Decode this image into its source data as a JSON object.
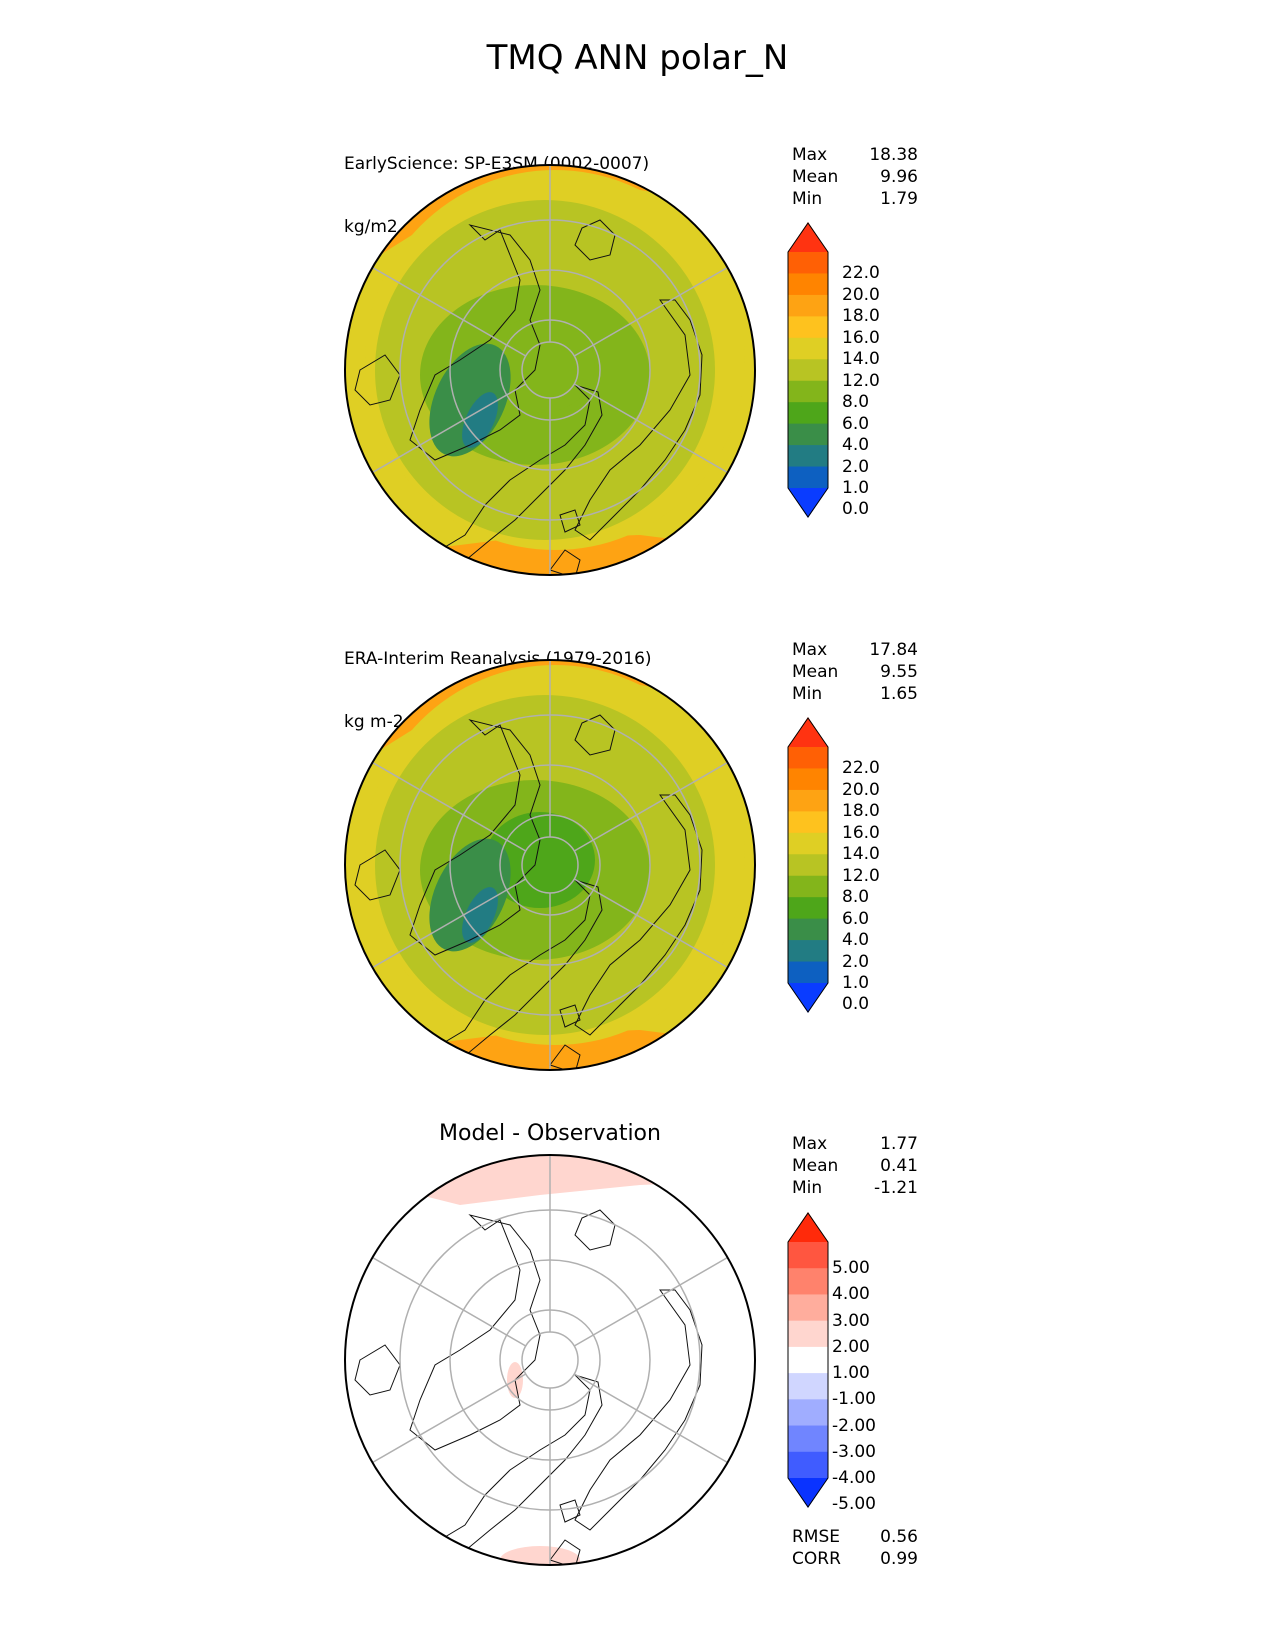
{
  "title": "TMQ ANN polar_N",
  "panels": [
    {
      "title_line1": "EarlyScience: SP-E3SM (0002-0007)",
      "title_line2": "kg/m2",
      "stats": [
        {
          "label": "Max",
          "value": "18.38"
        },
        {
          "label": "Mean",
          "value": "9.96"
        },
        {
          "label": "Min",
          "value": "1.79"
        }
      ],
      "colorbar_labels": [
        "22.0",
        "20.0",
        "18.0",
        "16.0",
        "14.0",
        "12.0",
        "8.0",
        "6.0",
        "4.0",
        "2.0",
        "1.0",
        "0.0"
      ],
      "colorbar_colors": [
        "#ff3311",
        "#ff6005",
        "#ff8400",
        "#fea313",
        "#fec21e",
        "#dfcf24",
        "#b8c423",
        "#83b51b",
        "#4ea61a",
        "#3a8e48",
        "#227c83",
        "#0d60c1",
        "#0a3cff"
      ]
    },
    {
      "title_line1": "ERA-Interim Reanalysis (1979-2016)",
      "title_line2": "kg m-2",
      "stats": [
        {
          "label": "Max",
          "value": "17.84"
        },
        {
          "label": "Mean",
          "value": "9.55"
        },
        {
          "label": "Min",
          "value": "1.65"
        }
      ],
      "colorbar_labels": [
        "22.0",
        "20.0",
        "18.0",
        "16.0",
        "14.0",
        "12.0",
        "8.0",
        "6.0",
        "4.0",
        "2.0",
        "1.0",
        "0.0"
      ],
      "colorbar_colors": [
        "#ff3311",
        "#ff6005",
        "#ff8400",
        "#fea313",
        "#fec21e",
        "#dfcf24",
        "#b8c423",
        "#83b51b",
        "#4ea61a",
        "#3a8e48",
        "#227c83",
        "#0d60c1",
        "#0a3cff"
      ]
    },
    {
      "title": "Model - Observation",
      "stats": [
        {
          "label": "Max",
          "value": "1.77"
        },
        {
          "label": "Mean",
          "value": "0.41"
        },
        {
          "label": "Min",
          "value": "-1.21"
        }
      ],
      "colorbar_labels": [
        "5.00",
        "4.00",
        "3.00",
        "2.00",
        "1.00",
        "-1.00",
        "-2.00",
        "-3.00",
        "-4.00",
        "-5.00"
      ],
      "colorbar_colors": [
        "#ff2a0a",
        "#ff5640",
        "#ff826c",
        "#ffad9d",
        "#ffd6cf",
        "#ffffff",
        "#d0d6ff",
        "#a0adff",
        "#7085ff",
        "#405cff",
        "#0a33ff"
      ],
      "metrics": [
        {
          "label": "RMSE",
          "value": "0.56"
        },
        {
          "label": "CORR",
          "value": "0.99"
        }
      ]
    }
  ],
  "chart_data": [
    {
      "type": "heatmap",
      "title": "EarlyScience: SP-E3SM (0002-0007)",
      "units": "kg/m2",
      "projection": "north polar stereographic",
      "levels": [
        0,
        1,
        2,
        4,
        6,
        8,
        12,
        14,
        16,
        18,
        20,
        22
      ],
      "extend": "both",
      "max": 18.38,
      "mean": 9.96,
      "min": 1.79
    },
    {
      "type": "heatmap",
      "title": "ERA-Interim Reanalysis (1979-2016)",
      "units": "kg m-2",
      "projection": "north polar stereographic",
      "levels": [
        0,
        1,
        2,
        4,
        6,
        8,
        12,
        14,
        16,
        18,
        20,
        22
      ],
      "extend": "both",
      "max": 17.84,
      "mean": 9.55,
      "min": 1.65
    },
    {
      "type": "heatmap",
      "title": "Model - Observation",
      "projection": "north polar stereographic",
      "levels": [
        -5,
        -4,
        -3,
        -2,
        -1,
        1,
        2,
        3,
        4,
        5
      ],
      "extend": "both",
      "max": 1.77,
      "mean": 0.41,
      "min": -1.21,
      "rmse": 0.56,
      "corr": 0.99
    }
  ]
}
